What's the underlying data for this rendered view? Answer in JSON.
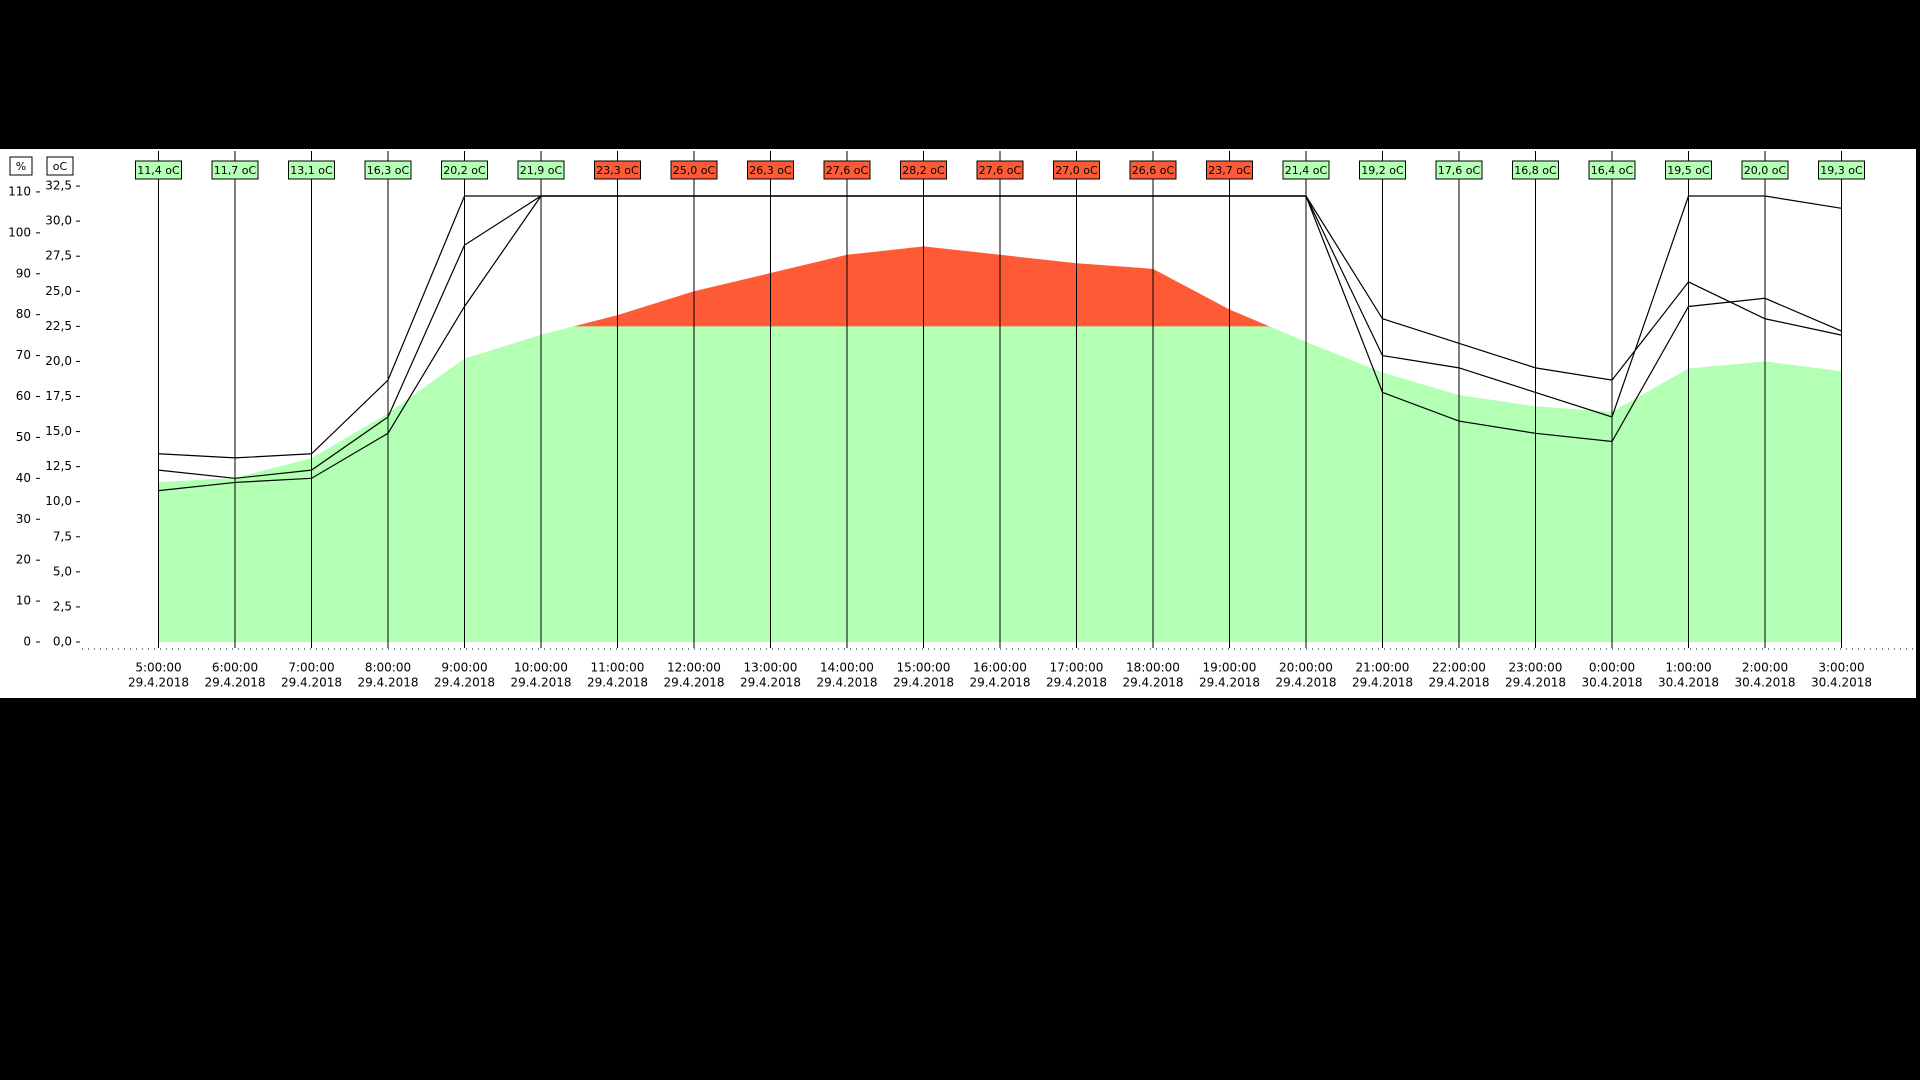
{
  "chart_data": {
    "type": "area-line",
    "y_unit": "%",
    "y2_unit": "oC",
    "x": [
      [
        "5:00:00",
        "29.4.2018"
      ],
      [
        "6:00:00",
        "29.4.2018"
      ],
      [
        "7:00:00",
        "29.4.2018"
      ],
      [
        "8:00:00",
        "29.4.2018"
      ],
      [
        "9:00:00",
        "29.4.2018"
      ],
      [
        "10:00:00",
        "29.4.2018"
      ],
      [
        "11:00:00",
        "29.4.2018"
      ],
      [
        "12:00:00",
        "29.4.2018"
      ],
      [
        "13:00:00",
        "29.4.2018"
      ],
      [
        "14:00:00",
        "29.4.2018"
      ],
      [
        "15:00:00",
        "29.4.2018"
      ],
      [
        "16:00:00",
        "29.4.2018"
      ],
      [
        "17:00:00",
        "29.4.2018"
      ],
      [
        "18:00:00",
        "29.4.2018"
      ],
      [
        "19:00:00",
        "29.4.2018"
      ],
      [
        "20:00:00",
        "29.4.2018"
      ],
      [
        "21:00:00",
        "29.4.2018"
      ],
      [
        "22:00:00",
        "29.4.2018"
      ],
      [
        "23:00:00",
        "29.4.2018"
      ],
      [
        "0:00:00",
        "30.4.2018"
      ],
      [
        "1:00:00",
        "30.4.2018"
      ],
      [
        "2:00:00",
        "30.4.2018"
      ],
      [
        "3:00:00",
        "30.4.2018"
      ]
    ],
    "ylim": [
      0,
      120
    ],
    "yticks": [
      0,
      10,
      20,
      30,
      40,
      50,
      60,
      70,
      80,
      90,
      100,
      110
    ],
    "y2lim": [
      0,
      35
    ],
    "y2ticks": [
      {
        "value": 0,
        "label": "0,0"
      },
      {
        "value": 2.5,
        "label": "2,5"
      },
      {
        "value": 5,
        "label": "5,0"
      },
      {
        "value": 7.5,
        "label": "7,5"
      },
      {
        "value": 10,
        "label": "10,0"
      },
      {
        "value": 12.5,
        "label": "12,5"
      },
      {
        "value": 15,
        "label": "15,0"
      },
      {
        "value": 17.5,
        "label": "17,5"
      },
      {
        "value": 20,
        "label": "20,0"
      },
      {
        "value": 22.5,
        "label": "22,5"
      },
      {
        "value": 25,
        "label": "25,0"
      },
      {
        "value": 27.5,
        "label": "27,5"
      },
      {
        "value": 30,
        "label": "30,0"
      },
      {
        "value": 32.5,
        "label": "32,5"
      }
    ],
    "threshold": 22.5,
    "grid": true,
    "series": [
      {
        "axis": "y2",
        "color": "#b3ffb3",
        "above_color": "#ff5a36",
        "values": [
          11.4,
          11.7,
          13.1,
          16.3,
          20.2,
          21.9,
          23.3,
          25.0,
          26.3,
          27.6,
          28.2,
          27.6,
          27.0,
          26.6,
          23.7,
          21.4,
          19.2,
          17.6,
          16.8,
          16.4,
          19.5,
          20.0,
          19.3
        ],
        "value_labels": [
          "11,4 oC",
          "11,7 oC",
          "13,1 oC",
          "16,3 oC",
          "20,2 oC",
          "21,9 oC",
          "23,3 oC",
          "25,0 oC",
          "26,3 oC",
          "27,6 oC",
          "28,2 oC",
          "27,6 oC",
          "27,0 oC",
          "26,6 oC",
          "23,7 oC",
          "21,4 oC",
          "19,2 oC",
          "17,6 oC",
          "16,8 oC",
          "16,4 oC",
          "19,5 oC",
          "20,0 oC",
          "19,3 oC"
        ]
      },
      {
        "color": "#000000",
        "values": [
          46,
          45,
          46,
          64,
          109,
          109,
          109,
          109,
          109,
          109,
          109,
          109,
          109,
          109,
          109,
          109,
          70,
          67,
          61,
          55,
          109,
          109,
          106
        ]
      },
      {
        "color": "#000000",
        "values": [
          42,
          40,
          42,
          55,
          97,
          109,
          109,
          109,
          109,
          109,
          109,
          109,
          109,
          109,
          109,
          109,
          61,
          54,
          51,
          49,
          82,
          84,
          76
        ]
      },
      {
        "color": "#000000",
        "values": [
          37,
          39,
          40,
          51,
          82,
          109,
          109,
          109,
          109,
          109,
          109,
          109,
          109,
          109,
          109,
          109,
          79,
          73,
          67,
          64,
          88,
          79,
          75
        ]
      }
    ]
  }
}
